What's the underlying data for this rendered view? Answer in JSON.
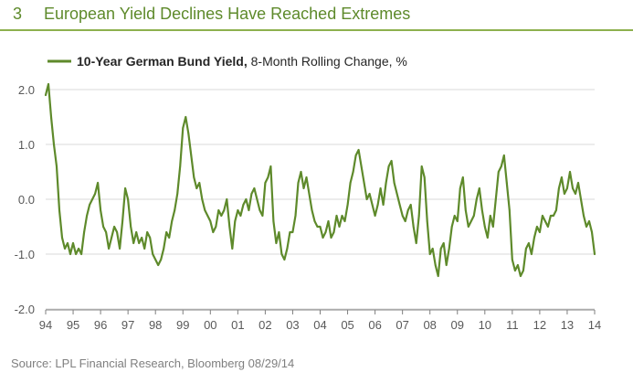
{
  "figure": {
    "number": "3",
    "title": "European Yield Declines Have Reached Extremes",
    "source": "Source: LPL Financial Research, Bloomberg   08/29/14"
  },
  "colors": {
    "series": "#5e8a2b",
    "title": "#5e8a2b",
    "rule": "#8db04e",
    "grid": "#d9d9d9",
    "axis": "#7f7f7f",
    "text": "#595959"
  },
  "legend": {
    "series_bold": "10-Year German Bund Yield,",
    "series_rest": " 8-Month Rolling Change, %"
  },
  "chart_data": {
    "type": "line",
    "title": "European Yield Declines Have Reached Extremes",
    "xlabel": "",
    "ylabel": "",
    "ylim": [
      -2.0,
      2.0
    ],
    "yticks": [
      "2.0",
      "1.0",
      "0.0",
      "-1.0",
      "-2.0"
    ],
    "xlim": [
      1994,
      2014
    ],
    "xtick_labels": [
      "94",
      "95",
      "96",
      "97",
      "98",
      "99",
      "00",
      "01",
      "02",
      "03",
      "04",
      "05",
      "06",
      "07",
      "08",
      "09",
      "10",
      "11",
      "12",
      "13",
      "14"
    ],
    "grid": "horizontal",
    "legend_position": "top-left",
    "series": [
      {
        "name": "10-Year German Bund Yield, 8-Month Rolling Change, %",
        "x": [
          1994.0,
          1994.1,
          1994.2,
          1994.3,
          1994.4,
          1994.5,
          1994.6,
          1994.7,
          1994.8,
          1994.9,
          1995.0,
          1995.1,
          1995.2,
          1995.3,
          1995.4,
          1995.5,
          1995.6,
          1995.7,
          1995.8,
          1995.9,
          1996.0,
          1996.1,
          1996.2,
          1996.3,
          1996.4,
          1996.5,
          1996.6,
          1996.7,
          1996.8,
          1996.9,
          1997.0,
          1997.1,
          1997.2,
          1997.3,
          1997.4,
          1997.5,
          1997.6,
          1997.7,
          1997.8,
          1997.9,
          1998.0,
          1998.1,
          1998.2,
          1998.3,
          1998.4,
          1998.5,
          1998.6,
          1998.7,
          1998.8,
          1998.9,
          1999.0,
          1999.1,
          1999.2,
          1999.3,
          1999.4,
          1999.5,
          1999.6,
          1999.7,
          1999.8,
          1999.9,
          2000.0,
          2000.1,
          2000.2,
          2000.3,
          2000.4,
          2000.5,
          2000.6,
          2000.7,
          2000.8,
          2000.9,
          2001.0,
          2001.1,
          2001.2,
          2001.3,
          2001.4,
          2001.5,
          2001.6,
          2001.7,
          2001.8,
          2001.9,
          2002.0,
          2002.1,
          2002.2,
          2002.3,
          2002.4,
          2002.5,
          2002.6,
          2002.7,
          2002.8,
          2002.9,
          2003.0,
          2003.1,
          2003.2,
          2003.3,
          2003.4,
          2003.5,
          2003.6,
          2003.7,
          2003.8,
          2003.9,
          2004.0,
          2004.1,
          2004.2,
          2004.3,
          2004.4,
          2004.5,
          2004.6,
          2004.7,
          2004.8,
          2004.9,
          2005.0,
          2005.1,
          2005.2,
          2005.3,
          2005.4,
          2005.5,
          2005.6,
          2005.7,
          2005.8,
          2005.9,
          2006.0,
          2006.1,
          2006.2,
          2006.3,
          2006.4,
          2006.5,
          2006.6,
          2006.7,
          2006.8,
          2006.9,
          2007.0,
          2007.1,
          2007.2,
          2007.3,
          2007.4,
          2007.5,
          2007.6,
          2007.7,
          2007.8,
          2007.9,
          2008.0,
          2008.1,
          2008.2,
          2008.3,
          2008.4,
          2008.5,
          2008.6,
          2008.7,
          2008.8,
          2008.9,
          2009.0,
          2009.1,
          2009.2,
          2009.3,
          2009.4,
          2009.5,
          2009.6,
          2009.7,
          2009.8,
          2009.9,
          2010.0,
          2010.1,
          2010.2,
          2010.3,
          2010.4,
          2010.5,
          2010.6,
          2010.7,
          2010.8,
          2010.9,
          2011.0,
          2011.1,
          2011.2,
          2011.3,
          2011.4,
          2011.5,
          2011.6,
          2011.7,
          2011.8,
          2011.9,
          2012.0,
          2012.1,
          2012.2,
          2012.3,
          2012.4,
          2012.5,
          2012.6,
          2012.7,
          2012.8,
          2012.9,
          2013.0,
          2013.1,
          2013.2,
          2013.3,
          2013.4,
          2013.5,
          2013.6,
          2013.7,
          2013.8,
          2013.9,
          2014.0
        ],
        "y": [
          1.9,
          2.1,
          1.5,
          1.0,
          0.6,
          -0.2,
          -0.7,
          -0.9,
          -0.8,
          -1.0,
          -0.8,
          -1.0,
          -0.9,
          -1.0,
          -0.6,
          -0.3,
          -0.1,
          0.0,
          0.1,
          0.3,
          -0.2,
          -0.5,
          -0.6,
          -0.9,
          -0.7,
          -0.5,
          -0.6,
          -0.9,
          -0.4,
          0.2,
          0.0,
          -0.5,
          -0.8,
          -0.6,
          -0.8,
          -0.7,
          -0.9,
          -0.6,
          -0.7,
          -1.0,
          -1.1,
          -1.2,
          -1.1,
          -0.9,
          -0.6,
          -0.7,
          -0.4,
          -0.2,
          0.1,
          0.6,
          1.3,
          1.5,
          1.2,
          0.8,
          0.4,
          0.2,
          0.3,
          0.0,
          -0.2,
          -0.3,
          -0.4,
          -0.6,
          -0.5,
          -0.2,
          -0.3,
          -0.2,
          0.0,
          -0.5,
          -0.9,
          -0.4,
          -0.2,
          -0.3,
          -0.1,
          0.0,
          -0.2,
          0.1,
          0.2,
          0.0,
          -0.2,
          -0.3,
          0.3,
          0.4,
          0.6,
          -0.4,
          -0.8,
          -0.6,
          -1.0,
          -1.1,
          -0.9,
          -0.6,
          -0.6,
          -0.3,
          0.3,
          0.5,
          0.2,
          0.4,
          0.1,
          -0.2,
          -0.4,
          -0.5,
          -0.5,
          -0.7,
          -0.6,
          -0.4,
          -0.7,
          -0.6,
          -0.3,
          -0.5,
          -0.3,
          -0.4,
          -0.1,
          0.3,
          0.5,
          0.8,
          0.9,
          0.6,
          0.3,
          0.0,
          0.1,
          -0.1,
          -0.3,
          -0.1,
          0.2,
          -0.1,
          0.3,
          0.6,
          0.7,
          0.3,
          0.1,
          -0.1,
          -0.3,
          -0.4,
          -0.2,
          -0.1,
          -0.5,
          -0.8,
          -0.3,
          0.6,
          0.4,
          -0.4,
          -1.0,
          -0.9,
          -1.2,
          -1.4,
          -0.9,
          -0.8,
          -1.2,
          -0.9,
          -0.5,
          -0.3,
          -0.4,
          0.2,
          0.4,
          -0.2,
          -0.5,
          -0.4,
          -0.3,
          0.0,
          0.2,
          -0.2,
          -0.5,
          -0.7,
          -0.3,
          -0.5,
          0.0,
          0.5,
          0.6,
          0.8,
          0.3,
          -0.2,
          -1.1,
          -1.3,
          -1.2,
          -1.4,
          -1.3,
          -0.9,
          -0.8,
          -1.0,
          -0.7,
          -0.5,
          -0.6,
          -0.3,
          -0.4,
          -0.5,
          -0.3,
          -0.3,
          -0.2,
          0.2,
          0.4,
          0.1,
          0.2,
          0.5,
          0.2,
          0.1,
          0.3,
          0.0,
          -0.3,
          -0.5,
          -0.4,
          -0.6,
          -1.0
        ]
      }
    ]
  }
}
